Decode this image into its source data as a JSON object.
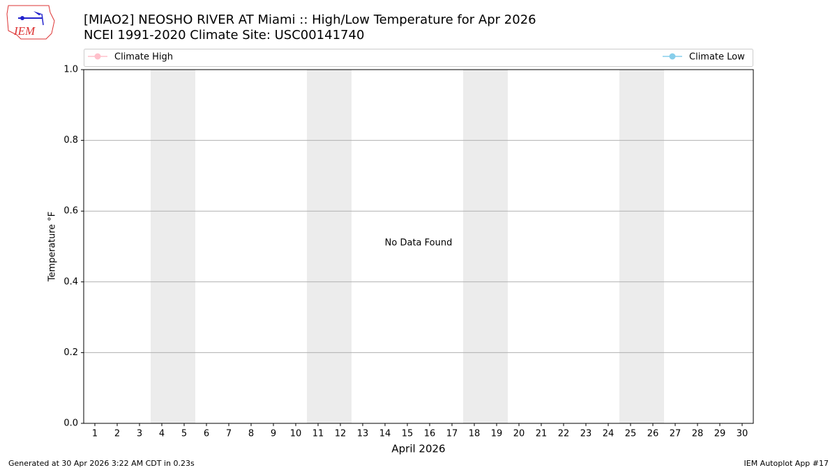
{
  "chart_data": {
    "type": "line",
    "title": [
      "[MIAO2] NEOSHO RIVER  AT Miami :: High/Low Temperature for Apr 2026",
      "NCEI 1991-2020 Climate Site: USC00141740"
    ],
    "logo_text": "IEM",
    "ylabel": "Temperature °F",
    "xlabel": "April 2026",
    "annotation": "No Data Found",
    "footer_left": "Generated at 30 Apr 2026 3:22 AM CDT in 0.23s",
    "footer_right": "IEM Autoplot App #17",
    "series": [
      {
        "name": "Climate High",
        "color": "#ffc0cb",
        "values": []
      },
      {
        "name": "Climate Low",
        "color": "#87ceeb",
        "values": []
      }
    ],
    "shaded_days": [
      4,
      5,
      11,
      12,
      18,
      19,
      25,
      26
    ],
    "xlim": [
      0.5,
      30.5
    ],
    "xticks": [
      1,
      2,
      3,
      4,
      5,
      6,
      7,
      8,
      9,
      10,
      11,
      12,
      13,
      14,
      15,
      16,
      17,
      18,
      19,
      20,
      21,
      22,
      23,
      24,
      25,
      26,
      27,
      28,
      29,
      30
    ],
    "ylim": [
      0,
      1
    ],
    "yticks": [
      {
        "value": 0,
        "label": "0.0"
      },
      0.2,
      0.4,
      0.6,
      0.8,
      {
        "value": 1,
        "label": "1.0"
      }
    ],
    "grid": true
  }
}
